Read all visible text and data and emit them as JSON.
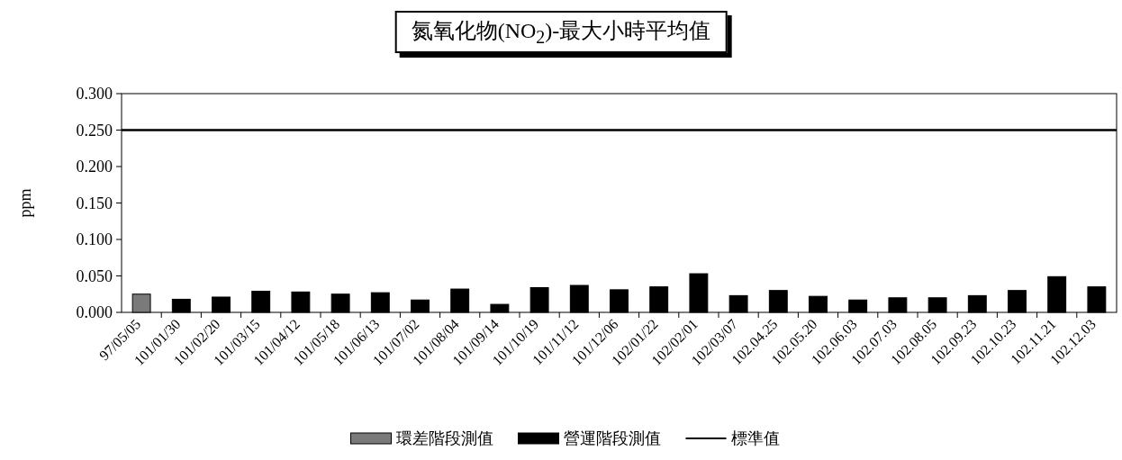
{
  "chart_data": {
    "type": "bar",
    "title": "氮氧化物(NO$_{2}$)-最大小時平均值",
    "ylabel": "ppm",
    "categories": [
      "97/05/05",
      "101/01/30",
      "101/02/20",
      "101/03/15",
      "101/04/12",
      "101/05/18",
      "101/06/13",
      "101/07/02",
      "101/08/04",
      "101/09/14",
      "101/10/19",
      "101/11/12",
      "101/12/06",
      "102/01/22",
      "102/02/01",
      "102/03/07",
      "102.04.25",
      "102.05.20",
      "102.06.03",
      "102.07.03",
      "102.08.05",
      "102.09.23",
      "102.10.23",
      "102.11.21",
      "102.12.03"
    ],
    "series": [
      {
        "name": "環差階段測值",
        "color": "#7a7a7a",
        "values": [
          0.025,
          null,
          null,
          null,
          null,
          null,
          null,
          null,
          null,
          null,
          null,
          null,
          null,
          null,
          null,
          null,
          null,
          null,
          null,
          null,
          null,
          null,
          null,
          null,
          null
        ]
      },
      {
        "name": "營運階段測值",
        "color": "#000000",
        "values": [
          null,
          0.018,
          0.021,
          0.029,
          0.028,
          0.025,
          0.027,
          0.017,
          0.032,
          0.011,
          0.034,
          0.037,
          0.031,
          0.035,
          0.053,
          0.023,
          0.03,
          0.022,
          0.017,
          0.02,
          0.02,
          0.023,
          0.03,
          0.049,
          0.035
        ]
      }
    ],
    "stacked": true,
    "ylim": [
      0,
      0.3
    ],
    "yticks": [
      {
        "value": 0,
        "label": "0.000"
      },
      {
        "value": 0.05,
        "label": "0.050"
      },
      {
        "value": 0.1,
        "label": "0.100"
      },
      {
        "value": 0.15,
        "label": "0.150"
      },
      {
        "value": 0.2,
        "label": "0.200"
      },
      {
        "value": 0.25,
        "label": "0.250"
      },
      {
        "value": 0.3,
        "label": "0.300"
      }
    ],
    "ref_lines": [
      {
        "axis": "y",
        "value": 0.25,
        "label": "標準值",
        "color": "#000000"
      }
    ],
    "legend": "bottom",
    "grid": false
  }
}
